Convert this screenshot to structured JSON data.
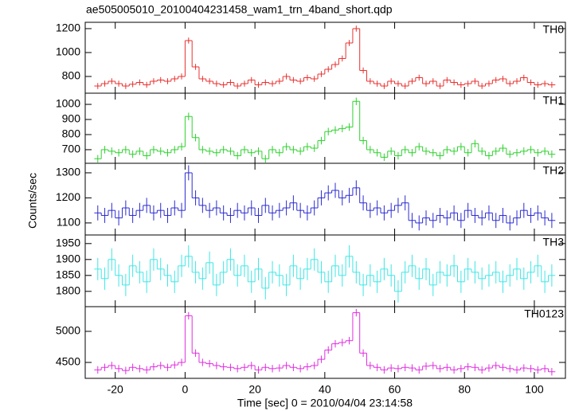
{
  "chart_data": {
    "type": "step",
    "title": "ae505005010_20100404231458_wam1_trn_4band_short.qdp",
    "xlabel": "Time [sec] 0 = 2010/04/04 23:14:58",
    "ylabel": "Counts/sec",
    "xlim": [
      -28.6,
      108.9
    ],
    "xticks": [
      -20,
      0,
      20,
      40,
      60,
      80,
      100
    ],
    "bin_width": 2,
    "x": [
      -25,
      -23,
      -21,
      -19,
      -17,
      -15,
      -13,
      -11,
      -9,
      -7,
      -5,
      -3,
      -1,
      1,
      3,
      5,
      7,
      9,
      11,
      13,
      15,
      17,
      19,
      21,
      23,
      25,
      27,
      29,
      31,
      33,
      35,
      37,
      39,
      41,
      43,
      45,
      47,
      49,
      51,
      53,
      55,
      57,
      59,
      61,
      63,
      65,
      67,
      69,
      71,
      73,
      75,
      77,
      79,
      81,
      83,
      85,
      87,
      89,
      91,
      93,
      95,
      97,
      99,
      101,
      103,
      105
    ],
    "series": [
      {
        "name": "TH0",
        "color": "#e8312f",
        "error": 25,
        "ylim": [
          660,
          1253
        ],
        "yticks": [
          800,
          1000,
          1200
        ],
        "values": [
          720,
          740,
          760,
          740,
          720,
          735,
          750,
          730,
          760,
          770,
          760,
          780,
          800,
          1100,
          880,
          780,
          760,
          740,
          730,
          750,
          720,
          740,
          770,
          730,
          750,
          740,
          760,
          800,
          770,
          760,
          790,
          780,
          820,
          860,
          900,
          950,
          1080,
          1200,
          850,
          760,
          740,
          720,
          760,
          740,
          720,
          760,
          790,
          740,
          760,
          720,
          770,
          750,
          730,
          740,
          760,
          720,
          740,
          770,
          780,
          740,
          760,
          790,
          750,
          730,
          740,
          730
        ]
      },
      {
        "name": "TH1",
        "color": "#2ed12e",
        "error": 25,
        "ylim": [
          610,
          1074
        ],
        "yticks": [
          700,
          800,
          900,
          1000
        ],
        "values": [
          640,
          700,
          690,
          680,
          700,
          670,
          690,
          660,
          700,
          690,
          680,
          700,
          720,
          920,
          780,
          700,
          690,
          680,
          700,
          690,
          660,
          700,
          680,
          690,
          640,
          700,
          680,
          720,
          700,
          690,
          720,
          710,
          760,
          820,
          830,
          840,
          850,
          1020,
          760,
          700,
          680,
          650,
          690,
          660,
          700,
          680,
          720,
          690,
          680,
          660,
          700,
          690,
          720,
          680,
          740,
          690,
          660,
          690,
          710,
          670,
          680,
          690,
          700,
          680,
          690,
          670
        ]
      },
      {
        "name": "TH2",
        "color": "#2b2bd1",
        "error": 30,
        "ylim": [
          1052,
          1338
        ],
        "yticks": [
          1100,
          1200,
          1300
        ],
        "values": [
          1140,
          1130,
          1150,
          1120,
          1160,
          1130,
          1150,
          1170,
          1140,
          1150,
          1130,
          1160,
          1150,
          1300,
          1200,
          1170,
          1150,
          1160,
          1140,
          1130,
          1150,
          1140,
          1160,
          1130,
          1170,
          1140,
          1150,
          1160,
          1180,
          1150,
          1140,
          1160,
          1200,
          1220,
          1230,
          1200,
          1210,
          1240,
          1180,
          1150,
          1160,
          1140,
          1150,
          1170,
          1180,
          1110,
          1100,
          1120,
          1110,
          1130,
          1120,
          1140,
          1110,
          1150,
          1130,
          1120,
          1140,
          1110,
          1130,
          1100,
          1120,
          1150,
          1130,
          1140,
          1120,
          1110
        ]
      },
      {
        "name": "TH3",
        "color": "#3ee6e6",
        "error": 35,
        "ylim": [
          1752,
          1977
        ],
        "yticks": [
          1800,
          1850,
          1900,
          1950
        ],
        "values": [
          1870,
          1840,
          1900,
          1850,
          1820,
          1880,
          1860,
          1830,
          1900,
          1870,
          1850,
          1830,
          1880,
          1910,
          1860,
          1840,
          1890,
          1820,
          1860,
          1900,
          1850,
          1880,
          1830,
          1870,
          1810,
          1860,
          1850,
          1820,
          1880,
          1840,
          1870,
          1900,
          1860,
          1830,
          1880,
          1850,
          1910,
          1860,
          1820,
          1850,
          1830,
          1870,
          1850,
          1800,
          1860,
          1880,
          1840,
          1870,
          1820,
          1860,
          1850,
          1880,
          1830,
          1870,
          1860,
          1840,
          1850,
          1860,
          1830,
          1850,
          1870,
          1840,
          1860,
          1880,
          1830,
          1850
        ]
      },
      {
        "name": "TH0123",
        "color": "#e02ee0",
        "error": 60,
        "ylim": [
          4244,
          5397
        ],
        "yticks": [
          4500,
          5000
        ],
        "values": [
          4380,
          4420,
          4450,
          4400,
          4370,
          4420,
          4400,
          4380,
          4430,
          4450,
          4420,
          4460,
          4500,
          5250,
          4650,
          4500,
          4480,
          4450,
          4430,
          4420,
          4400,
          4420,
          4450,
          4380,
          4420,
          4400,
          4410,
          4450,
          4420,
          4400,
          4430,
          4450,
          4550,
          4700,
          4800,
          4820,
          4850,
          5300,
          4650,
          4450,
          4420,
          4380,
          4410,
          4400,
          4420,
          4410,
          4380,
          4440,
          4450,
          4400,
          4420,
          4380,
          4400,
          4430,
          4420,
          4380,
          4410,
          4450,
          4420,
          4400,
          4380,
          4410,
          4400,
          4380,
          4400,
          4350
        ]
      }
    ]
  }
}
